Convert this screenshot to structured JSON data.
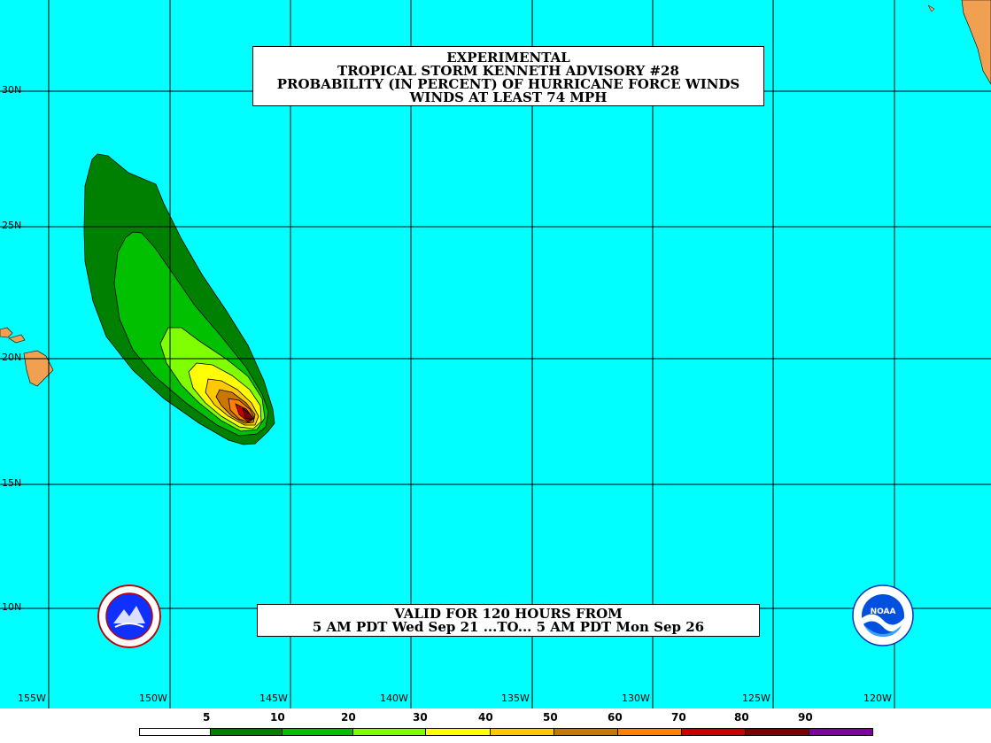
{
  "title": {
    "line1": "EXPERIMENTAL",
    "line2": "TROPICAL STORM KENNETH ADVISORY #28",
    "line3": "PROBABILITY (IN PERCENT) OF HURRICANE FORCE WINDS",
    "line4": "WINDS AT LEAST 74 MPH"
  },
  "valid": {
    "line1": "VALID FOR 120 HOURS FROM",
    "line2": "5 AM PDT Wed Sep 21 ...TO... 5 AM PDT Mon Sep 26"
  },
  "lat_labels": [
    "30N",
    "25N",
    "20N",
    "15N",
    "10N"
  ],
  "lon_labels": [
    "155W",
    "150W",
    "145W",
    "140W",
    "135W",
    "130W",
    "125W",
    "120W"
  ],
  "legend": {
    "labels": [
      "5",
      "10",
      "20",
      "30",
      "40",
      "50",
      "60",
      "70",
      "80",
      "90"
    ],
    "colors": [
      "#ffffff",
      "#008000",
      "#00c000",
      "#80ff00",
      "#ffff00",
      "#ffc800",
      "#c87800",
      "#ff8000",
      "#c80000",
      "#800000",
      "#8000a0"
    ]
  },
  "logos": {
    "left": "NWS seal",
    "right_text": "NOAA"
  },
  "colors": {
    "ocean": "#00ffff",
    "land": "#f0a050"
  }
}
